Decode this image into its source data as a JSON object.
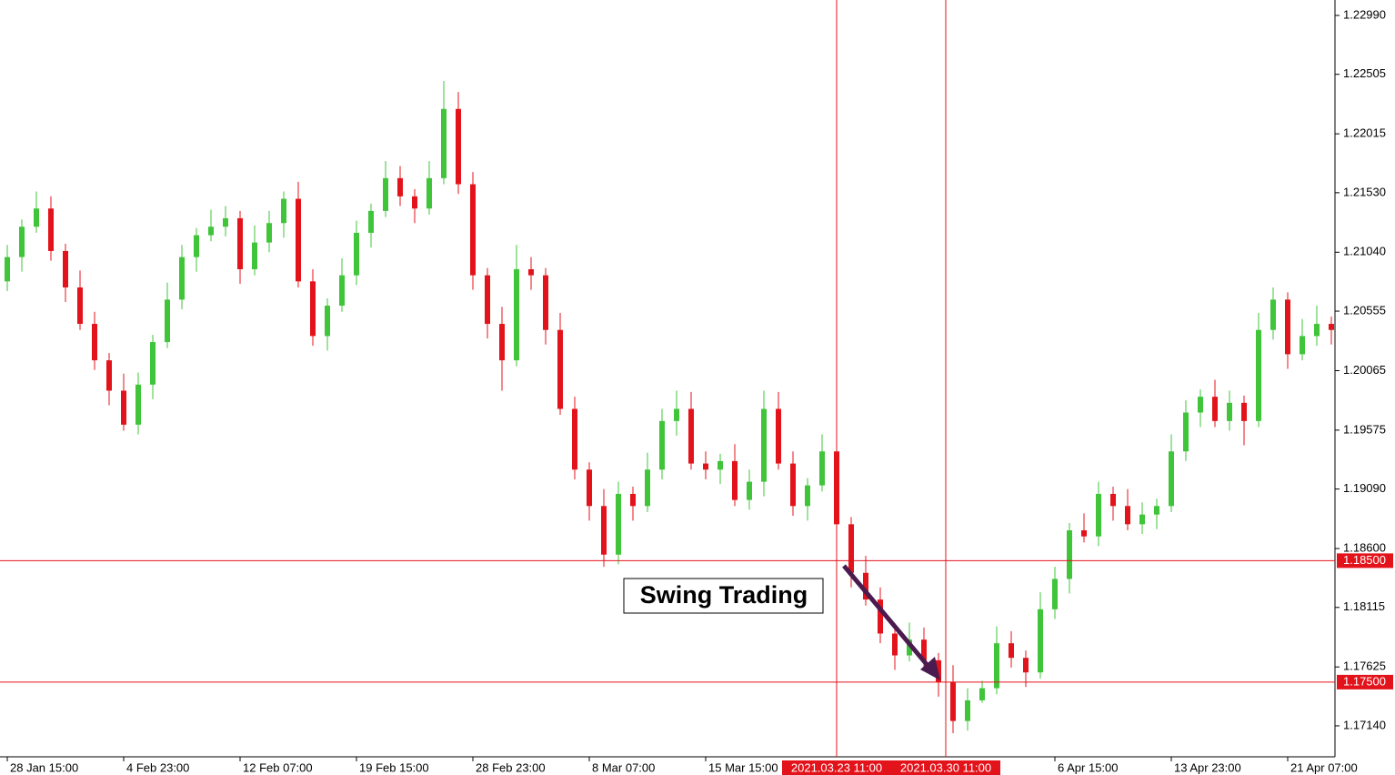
{
  "chart_data": {
    "type": "candlestick",
    "annotation": "Swing Trading",
    "up_color": "#3fc43a",
    "down_color": "#e3131b",
    "line_color": "#e3131b",
    "open": [
      1.208,
      1.21,
      1.2125,
      1.214,
      1.2105,
      1.2075,
      1.2045,
      1.2015,
      1.199,
      1.1962,
      1.1995,
      1.203,
      1.2065,
      1.21,
      1.2118,
      1.2125,
      1.2132,
      1.209,
      1.2112,
      1.2128,
      1.2148,
      1.208,
      1.2035,
      1.206,
      1.2085,
      1.212,
      1.2138,
      1.2165,
      1.215,
      1.214,
      1.2165,
      1.2222,
      1.216,
      1.2085,
      1.2045,
      1.2015,
      1.209,
      1.2085,
      1.204,
      1.1975,
      1.1925,
      1.1895,
      1.1855,
      1.1905,
      1.1895,
      1.1925,
      1.1965,
      1.1975,
      1.193,
      1.1925,
      1.1932,
      1.19,
      1.1915,
      1.1975,
      1.193,
      1.1895,
      1.1912,
      1.194,
      1.188,
      1.184,
      1.1818,
      1.179,
      1.1772,
      1.1785,
      1.1768,
      1.175,
      1.1718,
      1.1735,
      1.1745,
      1.1782,
      1.177,
      1.1758,
      1.181,
      1.1835,
      1.1875,
      1.187,
      1.1905,
      1.1895,
      1.188,
      1.1888,
      1.1895,
      1.194,
      1.1972,
      1.1985,
      1.1965,
      1.198,
      1.1965,
      1.204,
      1.2065,
      1.202,
      1.2035,
      1.2045
    ],
    "high": [
      1.211,
      1.2131,
      1.2154,
      1.215,
      1.2111,
      1.2089,
      1.2055,
      1.2021,
      1.2004,
      1.2005,
      1.2036,
      1.2079,
      1.211,
      1.2124,
      1.2139,
      1.2142,
      1.2138,
      1.2126,
      1.2138,
      1.2154,
      1.2162,
      1.209,
      1.2066,
      1.2099,
      1.213,
      1.2144,
      1.2179,
      1.2175,
      1.2156,
      1.2179,
      1.2245,
      1.2236,
      1.217,
      1.2091,
      1.2059,
      1.211,
      1.21,
      1.2091,
      1.2054,
      1.1985,
      1.1931,
      1.1909,
      1.1915,
      1.1911,
      1.1939,
      1.1975,
      1.199,
      1.1989,
      1.194,
      1.1938,
      1.1946,
      1.1925,
      1.199,
      1.1989,
      1.194,
      1.1918,
      1.1954,
      1.195,
      1.1886,
      1.1854,
      1.1828,
      1.1796,
      1.1799,
      1.1795,
      1.1774,
      1.1764,
      1.1745,
      1.1751,
      1.1796,
      1.1792,
      1.1776,
      1.1824,
      1.1845,
      1.1881,
      1.1889,
      1.1915,
      1.1911,
      1.1909,
      1.1898,
      1.1901,
      1.1954,
      1.1982,
      1.1991,
      1.1999,
      1.199,
      1.1986,
      1.2054,
      1.2075,
      1.2071,
      1.2049,
      1.206,
      1.2051
    ],
    "low": [
      1.2072,
      1.2088,
      1.212,
      1.2097,
      1.2063,
      1.204,
      1.2007,
      1.1978,
      1.1957,
      1.1954,
      1.1983,
      1.2025,
      1.2057,
      1.2088,
      1.2113,
      1.2117,
      1.2078,
      1.2085,
      1.2104,
      1.2116,
      1.2075,
      1.2027,
      1.2023,
      1.2055,
      1.2077,
      1.2108,
      1.2133,
      1.2142,
      1.2128,
      1.2135,
      1.216,
      1.2152,
      1.2073,
      1.2033,
      1.199,
      1.201,
      1.2073,
      1.2028,
      1.197,
      1.1917,
      1.1883,
      1.1845,
      1.1847,
      1.1883,
      1.189,
      1.1917,
      1.1953,
      1.1925,
      1.1917,
      1.1913,
      1.1895,
      1.1892,
      1.1903,
      1.1925,
      1.1887,
      1.1883,
      1.1907,
      1.1872,
      1.1828,
      1.1813,
      1.1782,
      1.176,
      1.1767,
      1.176,
      1.1738,
      1.1708,
      1.171,
      1.1733,
      1.174,
      1.1762,
      1.1746,
      1.1753,
      1.1802,
      1.1823,
      1.1865,
      1.1862,
      1.1883,
      1.1875,
      1.1872,
      1.1876,
      1.189,
      1.1932,
      1.196,
      1.196,
      1.1957,
      1.1945,
      1.196,
      1.2032,
      1.2008,
      1.2015,
      1.2027,
      1.2028
    ],
    "close": [
      1.21,
      1.2125,
      1.214,
      1.2105,
      1.2075,
      1.2045,
      1.2015,
      1.199,
      1.1962,
      1.1995,
      1.203,
      1.2065,
      1.21,
      1.2118,
      1.2125,
      1.2132,
      1.209,
      1.2112,
      1.2128,
      1.2148,
      1.208,
      1.2035,
      1.206,
      1.2085,
      1.212,
      1.2138,
      1.2165,
      1.215,
      1.214,
      1.2165,
      1.2222,
      1.216,
      1.2085,
      1.2045,
      1.2015,
      1.209,
      1.2085,
      1.204,
      1.1975,
      1.1925,
      1.1895,
      1.1855,
      1.1905,
      1.1895,
      1.1925,
      1.1965,
      1.1975,
      1.193,
      1.1925,
      1.1932,
      1.19,
      1.1915,
      1.1975,
      1.193,
      1.1895,
      1.1912,
      1.194,
      1.188,
      1.184,
      1.1818,
      1.179,
      1.1772,
      1.1785,
      1.1768,
      1.175,
      1.1718,
      1.1735,
      1.1745,
      1.1782,
      1.177,
      1.1758,
      1.181,
      1.1835,
      1.1875,
      1.187,
      1.1905,
      1.1895,
      1.188,
      1.1888,
      1.1895,
      1.194,
      1.1972,
      1.1985,
      1.1965,
      1.198,
      1.1965,
      1.204,
      1.2065,
      1.202,
      1.2035,
      1.2045,
      1.204
    ],
    "ylim": [
      1.16885,
      1.23117
    ],
    "yticks": [
      {
        "value": 1.2299,
        "label": "1.22990"
      },
      {
        "value": 1.22505,
        "label": "1.22505"
      },
      {
        "value": 1.22015,
        "label": "1.22015"
      },
      {
        "value": 1.2153,
        "label": "1.21530"
      },
      {
        "value": 1.2104,
        "label": "1.21040"
      },
      {
        "value": 1.20555,
        "label": "1.20555"
      },
      {
        "value": 1.20065,
        "label": "1.20065"
      },
      {
        "value": 1.19575,
        "label": "1.19575"
      },
      {
        "value": 1.1909,
        "label": "1.19090"
      },
      {
        "value": 1.186,
        "label": "1.18600"
      },
      {
        "value": 1.18115,
        "label": "1.18115"
      },
      {
        "value": 1.17625,
        "label": "1.17625"
      },
      {
        "value": 1.1714,
        "label": "1.17140"
      }
    ],
    "xticks": [
      {
        "value": 0,
        "label": "28 Jan 15:00"
      },
      {
        "value": 8,
        "label": "4 Feb 23:00"
      },
      {
        "value": 16,
        "label": "12 Feb 07:00"
      },
      {
        "value": 24,
        "label": "19 Feb 15:00"
      },
      {
        "value": 32,
        "label": "28 Feb 23:00"
      },
      {
        "value": 40,
        "label": "8 Mar 07:00"
      },
      {
        "value": 48,
        "label": "15 Mar 15:00"
      },
      {
        "value": 72,
        "label": "6 Apr 15:00"
      },
      {
        "value": 80,
        "label": "13 Apr 23:00"
      },
      {
        "value": 88,
        "label": "21 Apr 07:00"
      }
    ],
    "hlines": [
      {
        "value": 1.185,
        "label": "1.18500"
      },
      {
        "value": 1.175,
        "label": "1.17500"
      }
    ],
    "vlines": [
      {
        "value": 57,
        "label": "2021.03.23 11:00"
      },
      {
        "value": 64.5,
        "label": "2021.03.30 11:00"
      }
    ]
  }
}
